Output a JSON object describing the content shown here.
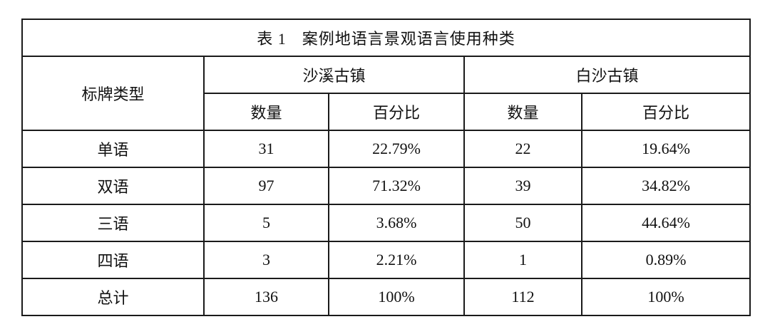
{
  "table": {
    "caption_number": "表 1",
    "caption_text": "案例地语言景观语言使用种类",
    "row_header": "标牌类型",
    "groups": [
      "沙溪古镇",
      "白沙古镇"
    ],
    "subheaders": [
      "数量",
      "百分比",
      "数量",
      "百分比"
    ],
    "rows": [
      {
        "type": "单语",
        "cells": [
          "31",
          "22.79%",
          "22",
          "19.64%"
        ]
      },
      {
        "type": "双语",
        "cells": [
          "97",
          "71.32%",
          "39",
          "34.82%"
        ]
      },
      {
        "type": "三语",
        "cells": [
          "5",
          "3.68%",
          "50",
          "44.64%"
        ]
      },
      {
        "type": "四语",
        "cells": [
          "3",
          "2.21%",
          "1",
          "0.89%"
        ]
      },
      {
        "type": "总计",
        "cells": [
          "136",
          "100%",
          "112",
          "100%"
        ]
      }
    ]
  }
}
